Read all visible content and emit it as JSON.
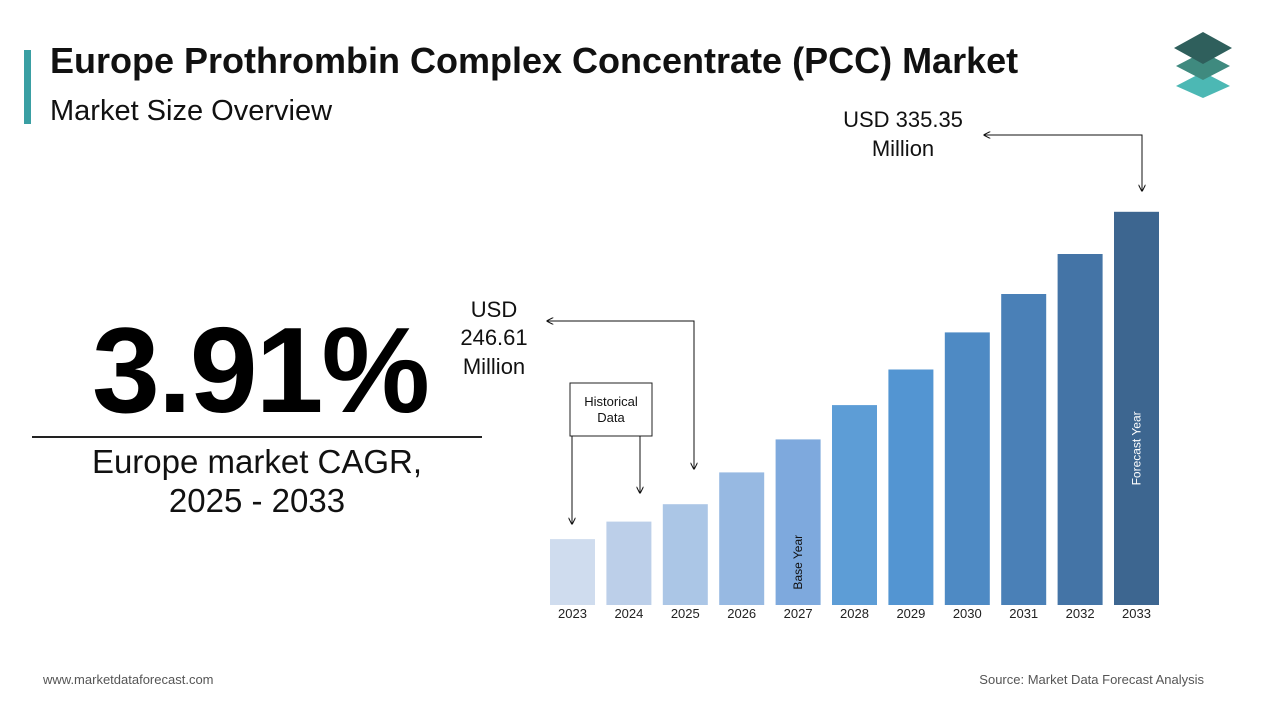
{
  "header": {
    "title": "Europe Prothrombin Complex Concentrate (PCC) Market",
    "subtitle": "Market Size Overview"
  },
  "kpi": {
    "value": "3.91%",
    "caption_line1": "Europe market CAGR,",
    "caption_line2": "2025 - 2033"
  },
  "callouts": {
    "start": [
      "USD",
      "246.61",
      "Million"
    ],
    "end": [
      "USD 335.35",
      "Million"
    ],
    "historical_box": [
      "Historical",
      "Data"
    ]
  },
  "footer": {
    "website": "www.marketdataforecast.com",
    "source": "Source: Market Data Forecast Analysis"
  },
  "colors": {
    "accent": "#3a9fa3",
    "bars": [
      "#cfdcee",
      "#bccfe9",
      "#abc6e6",
      "#97b9e2",
      "#7ea9dd",
      "#5d9dd6",
      "#5395d2",
      "#4e8ac4",
      "#4a80b7",
      "#4474a6",
      "#3d6690"
    ],
    "logo": [
      "#2f5f5c",
      "#3f8a7f",
      "#4cb8b4"
    ]
  },
  "chart_data": {
    "type": "bar",
    "categories": [
      "2023",
      "2024",
      "2025",
      "2026",
      "2027",
      "2028",
      "2029",
      "2030",
      "2031",
      "2032",
      "2033"
    ],
    "values": [
      236.0,
      241.3,
      246.61,
      256.25,
      266.27,
      276.68,
      287.49,
      298.73,
      310.41,
      322.55,
      335.35
    ],
    "ylim": [
      216,
      345
    ],
    "bar_notes": [
      {
        "category": "2027",
        "text": "Base Year"
      },
      {
        "category": "2033",
        "text": "Forecast Year"
      }
    ],
    "xlabel": "",
    "ylabel": "",
    "grid": false,
    "legend": "none"
  }
}
